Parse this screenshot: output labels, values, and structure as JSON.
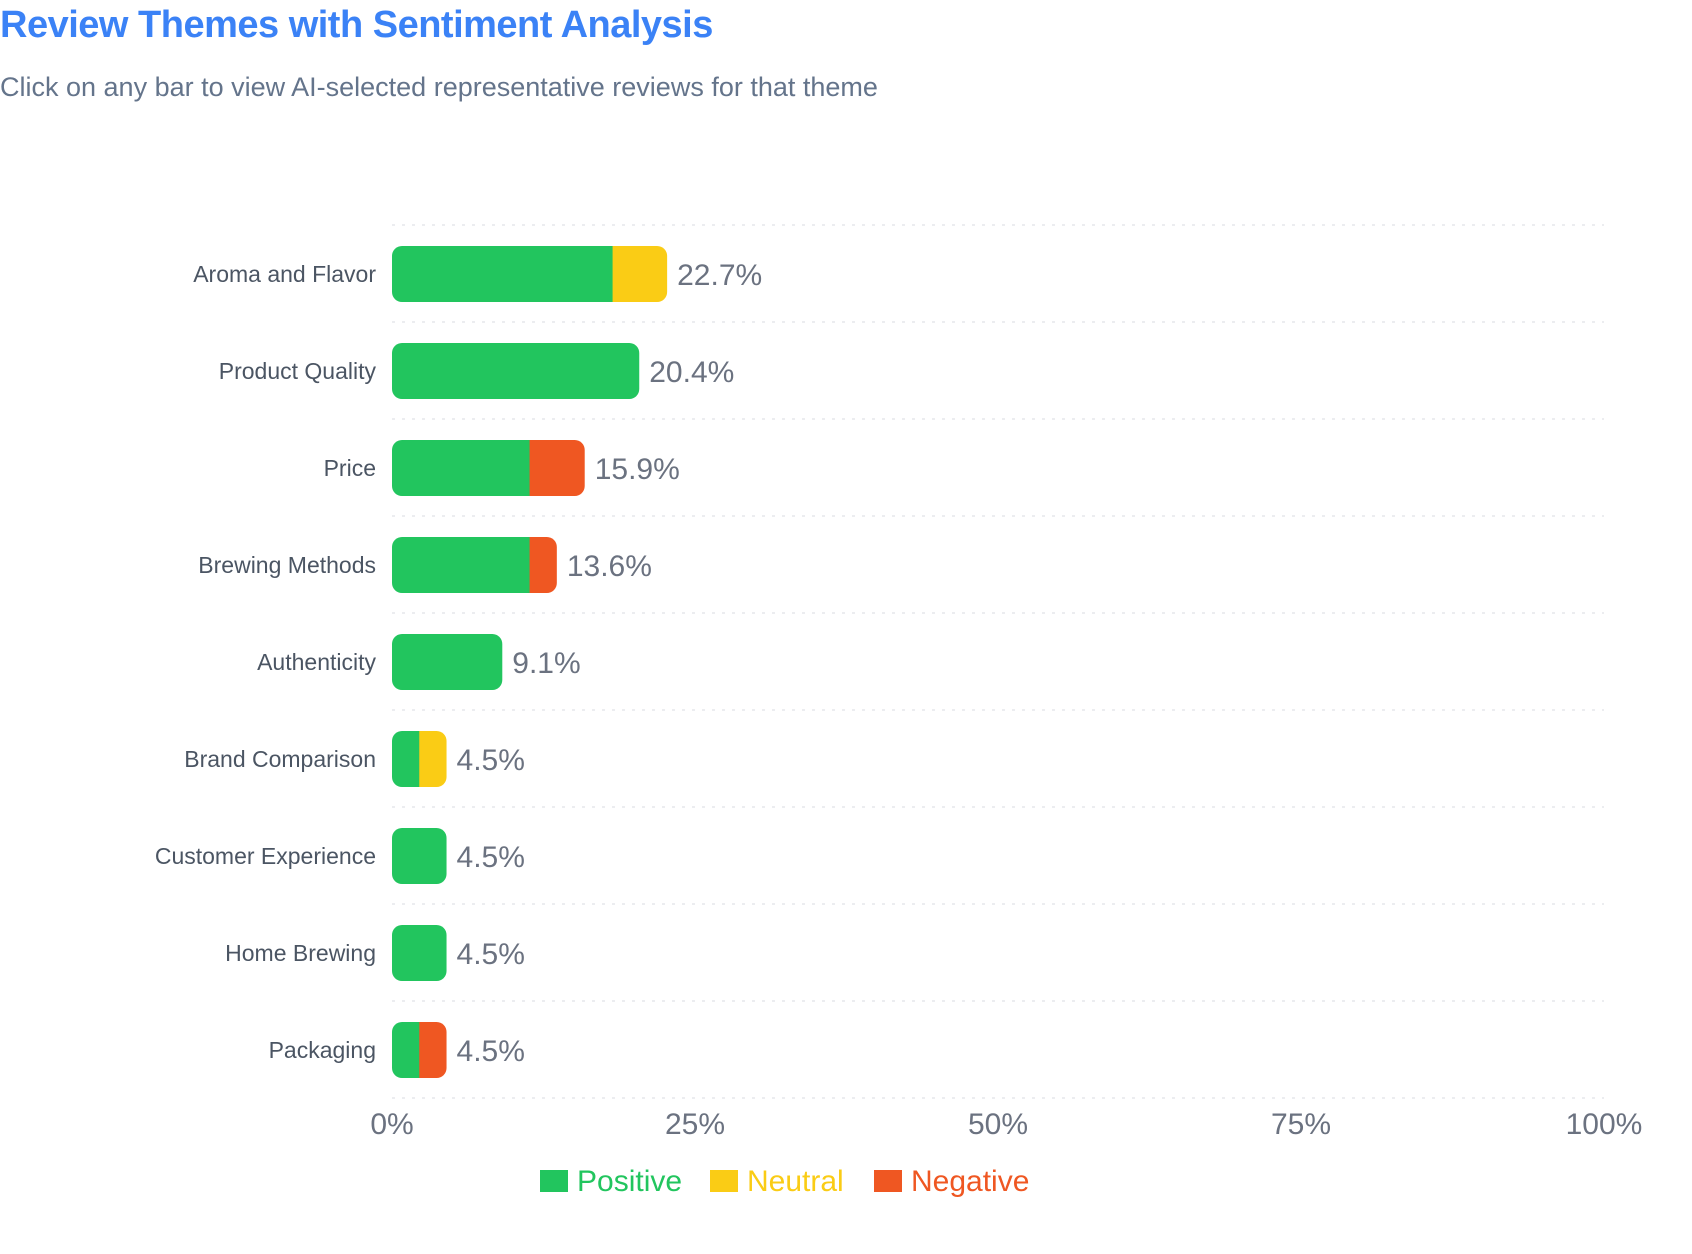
{
  "header": {
    "title": "Review Themes with Sentiment Analysis",
    "subtitle": "Click on any bar to view AI-selected representative reviews for that theme"
  },
  "colors": {
    "title": "#3b82f6",
    "positive": "#22c55e",
    "neutral": "#facc15",
    "negative": "#ef5722",
    "grid": "#e5e7eb",
    "label": "#4b5563",
    "value": "#6b7280"
  },
  "chart_data": {
    "type": "bar",
    "orientation": "horizontal",
    "stacked": true,
    "title": "Review Themes with Sentiment Analysis",
    "xlabel": "",
    "ylabel": "",
    "xlim": [
      0,
      100
    ],
    "x_ticks": [
      "0%",
      "25%",
      "50%",
      "75%",
      "100%"
    ],
    "x_tick_values": [
      0,
      25,
      50,
      75,
      100
    ],
    "grid": true,
    "legend_position": "bottom",
    "categories": [
      "Aroma and Flavor",
      "Product Quality",
      "Price",
      "Brewing Methods",
      "Authenticity",
      "Brand Comparison",
      "Customer Experience",
      "Home Brewing",
      "Packaging"
    ],
    "totals": [
      22.7,
      20.4,
      15.9,
      13.6,
      9.1,
      4.5,
      4.5,
      4.5,
      4.5
    ],
    "total_labels": [
      "22.7%",
      "20.4%",
      "15.9%",
      "13.6%",
      "9.1%",
      "4.5%",
      "4.5%",
      "4.5%",
      "4.5%"
    ],
    "series": [
      {
        "name": "Positive",
        "color": "#22c55e",
        "values": [
          18.2,
          20.4,
          11.35,
          11.35,
          9.1,
          2.25,
          4.5,
          4.5,
          2.25
        ]
      },
      {
        "name": "Neutral",
        "color": "#facc15",
        "values": [
          4.5,
          0,
          0,
          0,
          0,
          2.25,
          0,
          0,
          0
        ]
      },
      {
        "name": "Negative",
        "color": "#ef5722",
        "values": [
          0,
          0,
          4.55,
          2.25,
          0,
          0,
          0,
          0,
          2.25
        ]
      }
    ]
  }
}
